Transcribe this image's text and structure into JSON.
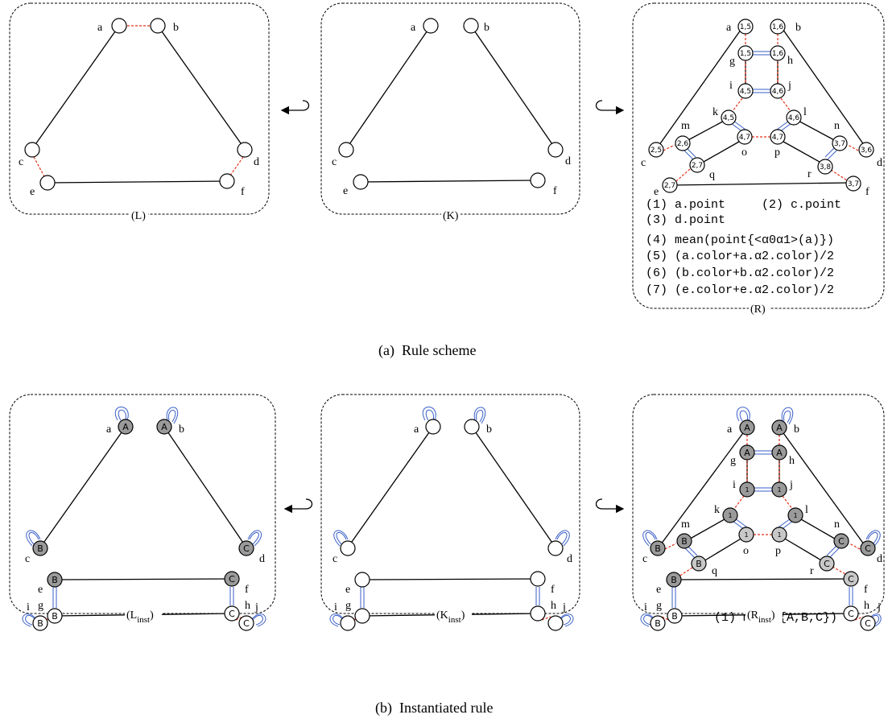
{
  "captions": {
    "rule_scheme": "(a)  Rule scheme",
    "instantiated_rule": "(b)  Instantiated rule"
  },
  "panels": {
    "L": "(L)",
    "K": "(K)",
    "R": "(R)",
    "L_inst": "(L",
    "K_inst": "(K",
    "R_inst": "(R",
    "inst_sub": "inst",
    "close_paren": ")"
  },
  "node_letters": {
    "a": "a",
    "b": "b",
    "c": "c",
    "d": "d",
    "e": "e",
    "f": "f",
    "g": "g",
    "h": "h",
    "i": "i",
    "j": "j",
    "k": "k",
    "l": "l",
    "m": "m",
    "n": "n",
    "o": "o",
    "p": "p",
    "q": "q",
    "r": "r"
  },
  "r_node_values": {
    "a": "1,5",
    "b": "1,6",
    "g": "1,5",
    "h": "1,6",
    "i": "4,5",
    "j": "4,6",
    "k": "4,5",
    "l": "4,6",
    "o": "4,7",
    "p": "4,7",
    "m": "2,6",
    "c": "2,5",
    "q": "2,7",
    "e": "2,7",
    "n": "3,7",
    "d": "3,6",
    "r": "3,8",
    "f": "3,7"
  },
  "r_expressions": [
    "(1) a.point",
    "(2) c.point",
    "(3) d.point",
    "(4) mean(point{<α0α1>(a)})",
    "(5) (a.color+a.α2.color)/2",
    "(6) (b.color+b.α2.color)/2",
    "(7) (e.color+e.α2.color)/2"
  ],
  "inst_node_values": {
    "a": "A",
    "b": "A",
    "c": "B",
    "d": "C",
    "e": "B",
    "f": "C",
    "g": "B",
    "h": "C",
    "i": "B",
    "j": "C",
    "r_a": "A",
    "r_b": "A",
    "r_g": "A",
    "r_h": "A",
    "r_i": "1",
    "r_j": "1",
    "r_k": "1",
    "r_l": "1",
    "r_o": "1",
    "r_p": "1",
    "r_m": "B",
    "r_c": "B",
    "r_q": "B",
    "r_n": "C",
    "r_d": "C",
    "r_r": "C",
    "r_e": "B",
    "r_f": "C",
    "r_g2": "B",
    "r_h2": "C",
    "r_i2": "B",
    "r_j2": "C"
  },
  "r_inst_expression": "(1) mean({A,B,C})",
  "colors": {
    "black_edge": "#000000",
    "red_dashed": "#e8321a",
    "blue_double": "#3a5fc8",
    "grey_fill": "#9a9a9a",
    "light_grey_fill": "#c8c8c8"
  }
}
